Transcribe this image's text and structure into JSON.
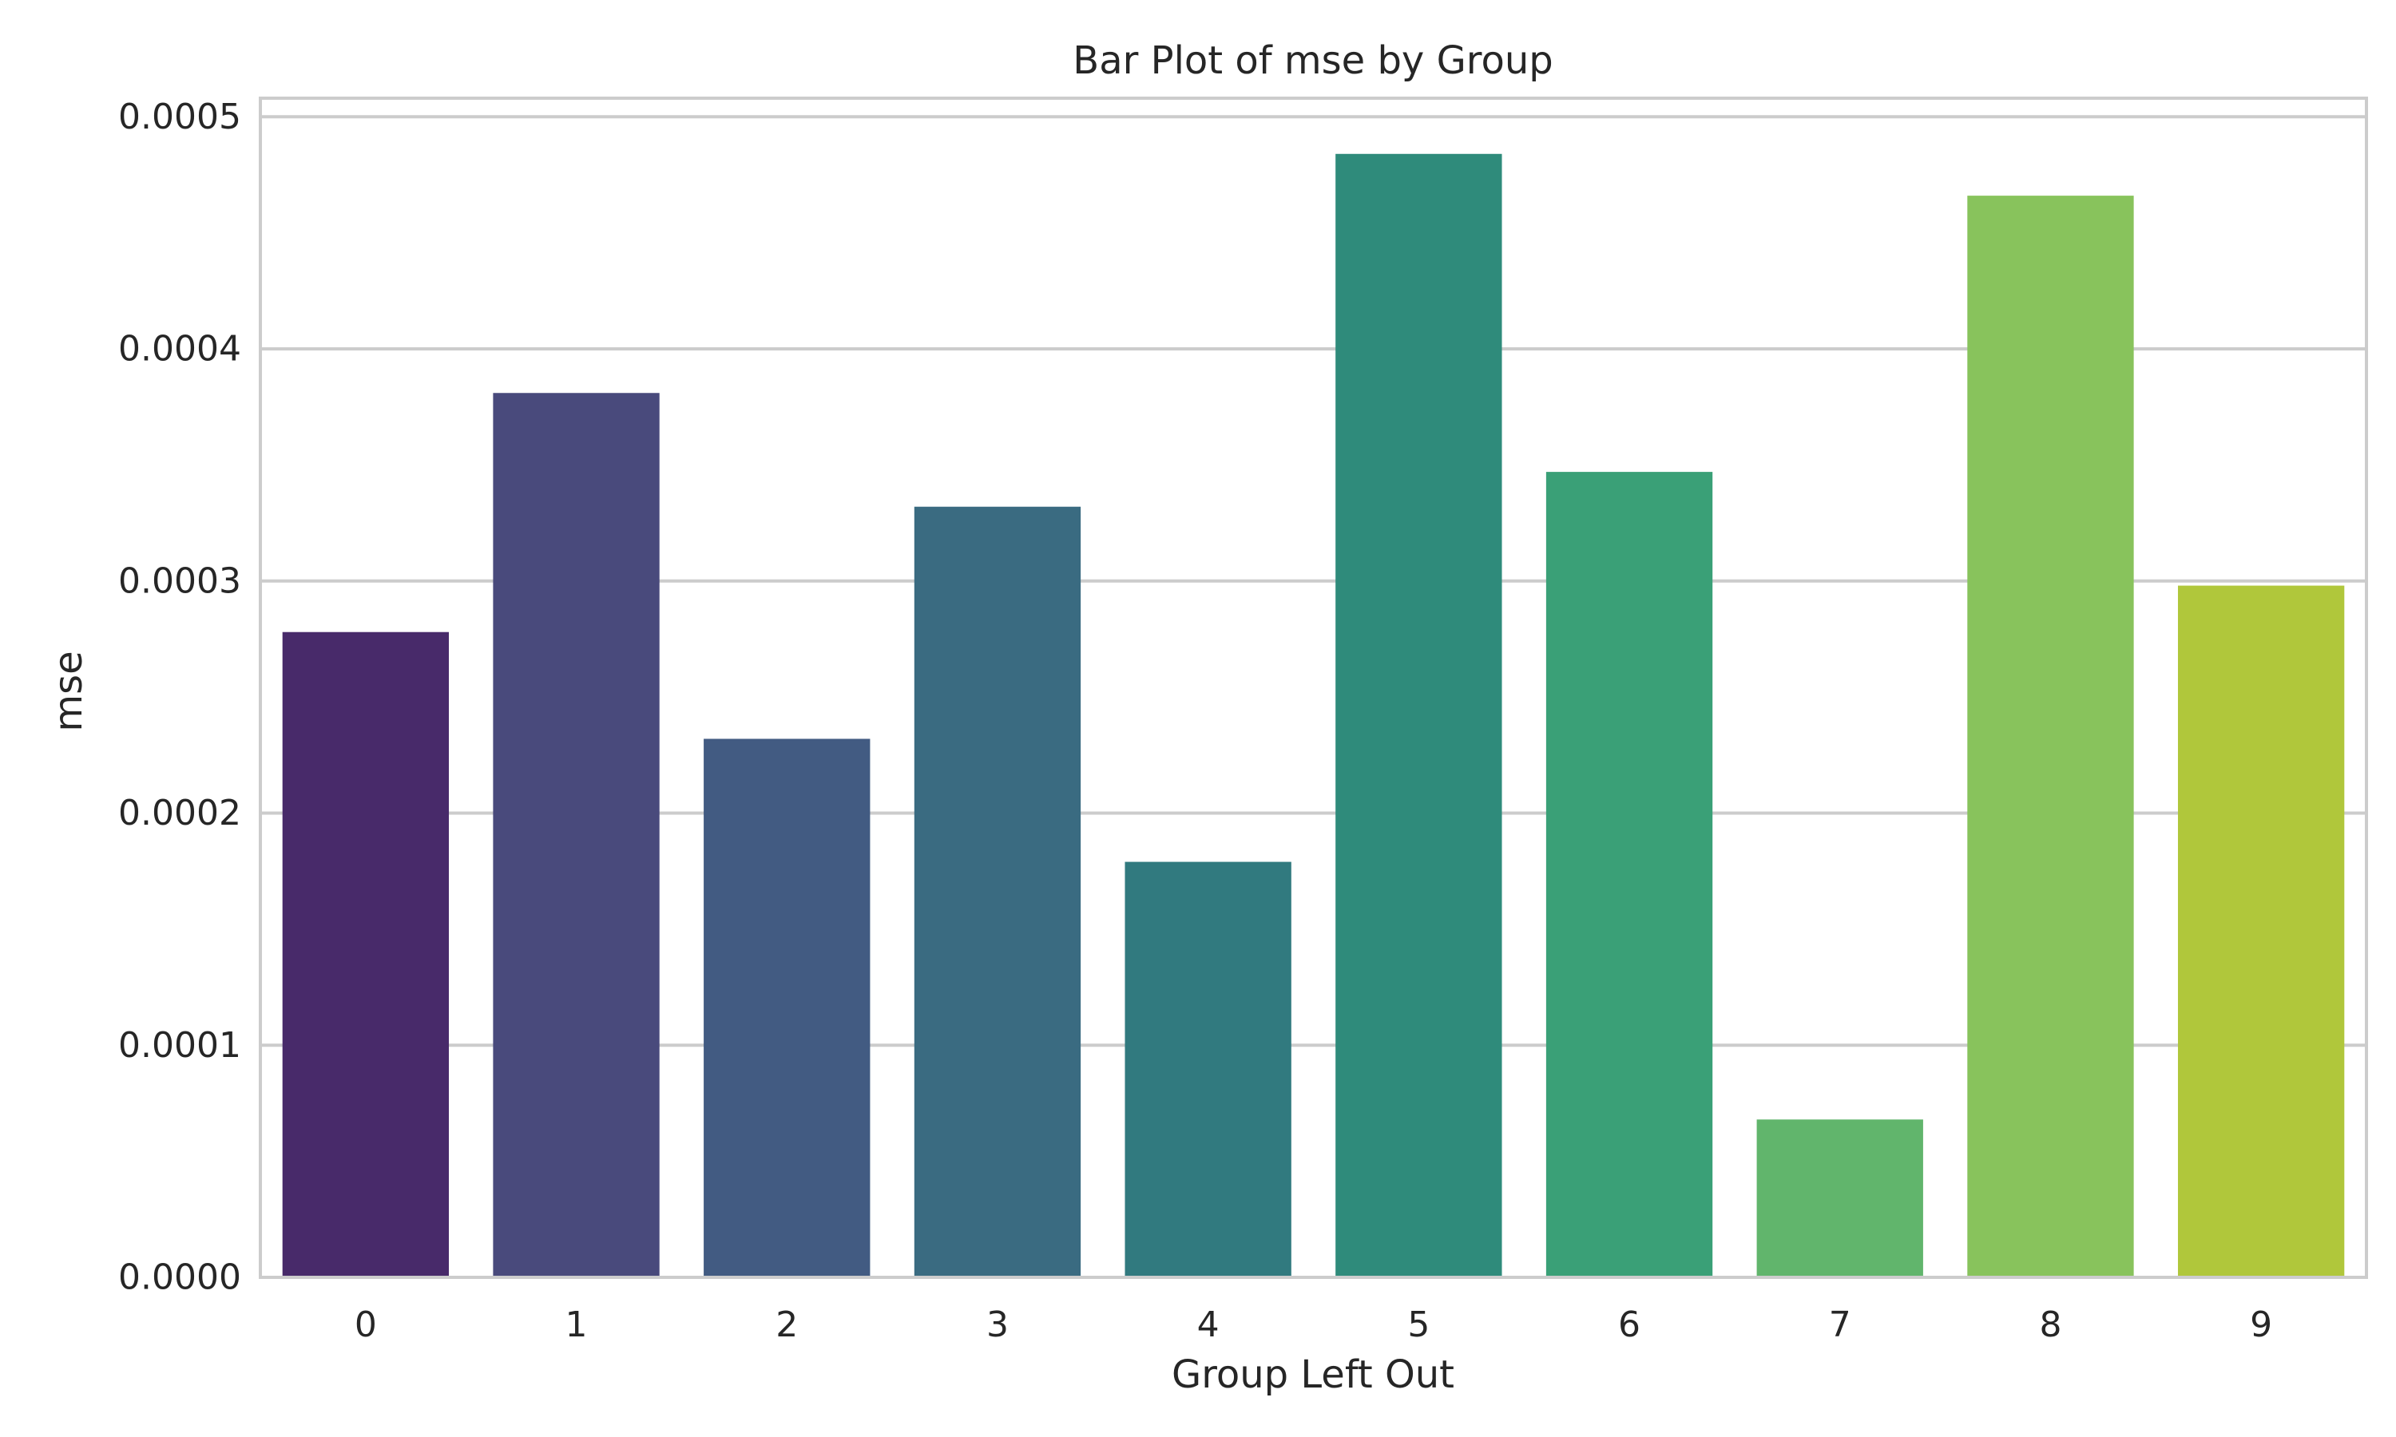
{
  "chart_data": {
    "type": "bar",
    "title": "Bar Plot of mse by Group",
    "xlabel": "Group Left Out",
    "ylabel": "mse",
    "categories": [
      "0",
      "1",
      "2",
      "3",
      "4",
      "5",
      "6",
      "7",
      "8",
      "9"
    ],
    "values": [
      0.000278,
      0.000381,
      0.000232,
      0.000332,
      0.000179,
      0.000484,
      0.000347,
      6.8e-05,
      0.000466,
      0.000298
    ],
    "colors": [
      "#482a6a",
      "#494a7c",
      "#425b82",
      "#3a6b81",
      "#317a7f",
      "#2f8b7b",
      "#3aa077",
      "#61b56c",
      "#88c35c",
      "#b0c73b"
    ],
    "ylim": [
      0,
      0.000508
    ],
    "yticks": [
      0,
      0.0001,
      0.0002,
      0.0003,
      0.0004,
      0.0005
    ],
    "ytick_labels": [
      "0.0000",
      "0.0001",
      "0.0002",
      "0.0003",
      "0.0004",
      "0.0005"
    ],
    "grid": true,
    "grid_color": "#cccccc",
    "spine_color": "#cccccc",
    "text_color": "#262626",
    "background": "#ffffff"
  }
}
